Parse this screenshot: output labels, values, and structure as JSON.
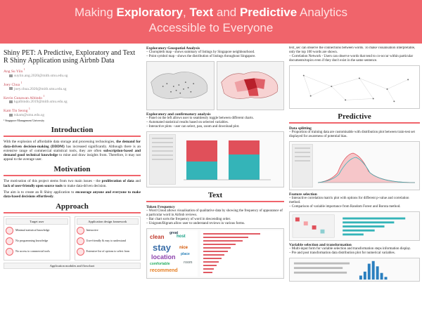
{
  "banner": {
    "title_parts": [
      "Making ",
      "Exploratory",
      ", ",
      "Text",
      " and ",
      "Predictive",
      " Analytics"
    ],
    "subtitle": "Accessible to Everyone"
  },
  "paper": {
    "title": "Shiny PET: A Predictive, Exploratory and Text R Shiny Application using Airbnb Data",
    "authors": [
      {
        "name": "Ang Su Yiin",
        "sup": "1",
        "email": "suyiin.ang.2020@mitb.smu.edu.sg"
      },
      {
        "name": "Joey Chua",
        "sup": "1",
        "email": "joey.chua.2020@mitb.smu.edu.sg"
      },
      {
        "name": "Kevin Gunawan Albindo",
        "sup": "1",
        "email": "kgalbindo.2019@mitb.smu.edu.sg"
      },
      {
        "name": "Kam Tin Seong",
        "sup": "1",
        "email": "tskam@smu.edu.sg"
      }
    ],
    "affiliation": "¹ Singapore Management University"
  },
  "introduction": {
    "heading": "Introduction",
    "text_1": "With the explosion of affordable data storage and processing technologies, ",
    "bold_1": "the demand for data-driven decision-making (DDDM)",
    "text_2": " has increased significantly. Although there is an extensive range of commercial statistical tools, they are often ",
    "bold_2": "subscription-based and demand good technical knowledge",
    "text_3": " to mine and draw insights from. Therefore, it may not appeal to the average user."
  },
  "motivation": {
    "heading": "Motivation",
    "p1_a": "The motivation of this project stems from two main issues - the ",
    "p1_b": "proliferation of data",
    "p1_c": " and ",
    "p1_d": "lack of user-friendly open source tools",
    "p1_e": " to make data-driven decision.",
    "p2_a": "The aim is to create an R Shiny application to ",
    "p2_b": "encourage anyone and everyone to make data-based decisions effortlessly",
    "p2_c": "."
  },
  "approach": {
    "heading": "Approach",
    "col_left_head": "Target user",
    "col_right_head": "Application design framework",
    "left_items": [
      "Minimal statistical knowledge",
      "No programming knowledge",
      "No access to commercial tools"
    ],
    "right_items": [
      "Interactive",
      "User-friendly & easy to understand",
      "Extensive list of options to select from"
    ],
    "footer": "Application modules and flowchart"
  },
  "exploratory": {
    "geo_heading": "Exploratory Geospatial Analysis",
    "geo_items": [
      "– Choropleth map - shows summary of listings by Singapore neighbourhood.",
      "– Point symbol map - shows the distribution of listings throughout Singapore."
    ],
    "conf_heading": "Exploratory and confirmatory analysis",
    "conf_items": [
      "– Panel on the left allows user to seamlessly toggle between different charts.",
      "– Automated statistical results based on selected variables.",
      "– Interactive plots - user can select, pan, zoom and download plot."
    ]
  },
  "text_section": {
    "heading": "Text",
    "token_heading": "Token Frequency",
    "token_items": [
      "– Word Cloud allows visualisation of qualitative data by showing the frequency of appearance of a particular word in Airbnb reviews.",
      "– Bar chart sorts the frequency of word in descending order.",
      "– Unigram/Bigram allow user to understand reviews in various forms."
    ],
    "wordcloud_words": [
      "stay",
      "clean",
      "location",
      "host",
      "nice",
      "great",
      "comfortable",
      "recommend",
      "room",
      "place"
    ]
  },
  "col3_text": {
    "top_lines": [
      "text_sec can observe the connections between words. To make visualisation interpretable, only the top 100 words are shown.",
      "– Correlation Network - Users can observe words that tend to co-occur within particular documents/topics even if they don't exist in the same sentence."
    ]
  },
  "predictive": {
    "heading": "Predictive",
    "split_heading": "Data splitting",
    "split_items": [
      "– Proportion of training data are customisable with distribution plot between train-test set displayed for awareness of potential bias."
    ],
    "feature_heading": "Feature selection",
    "feature_items": [
      "– Interactive correlation matrix plot with options for different p-value and correlation method.",
      "– Comparison of variable importance from Random Forest and Boruta method."
    ],
    "transform_heading": "Variable selection and transformation",
    "transform_items": [
      "– Multi-input form for variable selection and transformation steps information display.",
      "– Pre and post transformation data distribution plot for numerical variables."
    ]
  },
  "colors": {
    "accent": "#f0646b",
    "banner_text": "#ffe1e2",
    "author": "#c74a55"
  }
}
